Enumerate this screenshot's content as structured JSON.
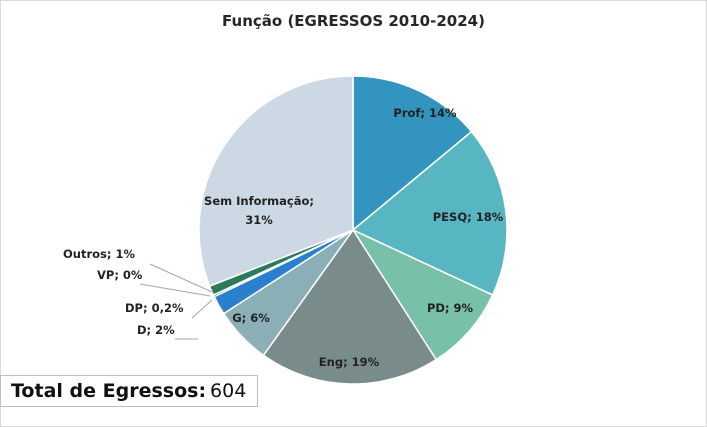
{
  "chart_data": {
    "type": "pie",
    "title": "Função (EGRESSOS 2010-2024)",
    "slices": [
      {
        "name": "Prof",
        "value": 14,
        "label": "Prof; 14%",
        "color": "#3394c0"
      },
      {
        "name": "PESQ",
        "value": 18,
        "label": "PESQ; 18%",
        "color": "#58b5c2"
      },
      {
        "name": "PD",
        "value": 9,
        "label": "PD; 9%",
        "color": "#78c0a7"
      },
      {
        "name": "Eng",
        "value": 19,
        "label": "Eng; 19%",
        "color": "#7a8b8c"
      },
      {
        "name": "G",
        "value": 6,
        "label": "G; 6%",
        "color": "#8aafb7"
      },
      {
        "name": "D",
        "value": 2,
        "label": "D; 2%",
        "color": "#2a7fcf"
      },
      {
        "name": "DP",
        "value": 0.2,
        "label": "DP; 0,2%",
        "color": "#1a5a8a"
      },
      {
        "name": "VP",
        "value": 0,
        "label": "VP; 0%",
        "color": "#235a78"
      },
      {
        "name": "Outros",
        "value": 1,
        "label": "Outros; 1%",
        "color": "#2d7a5a"
      },
      {
        "name": "Sem Informação",
        "value": 31,
        "label": "Sem Informação;\n31%",
        "color": "#ccd9e5"
      }
    ]
  },
  "total": {
    "label": "Total de Egressos:",
    "value": "604"
  }
}
